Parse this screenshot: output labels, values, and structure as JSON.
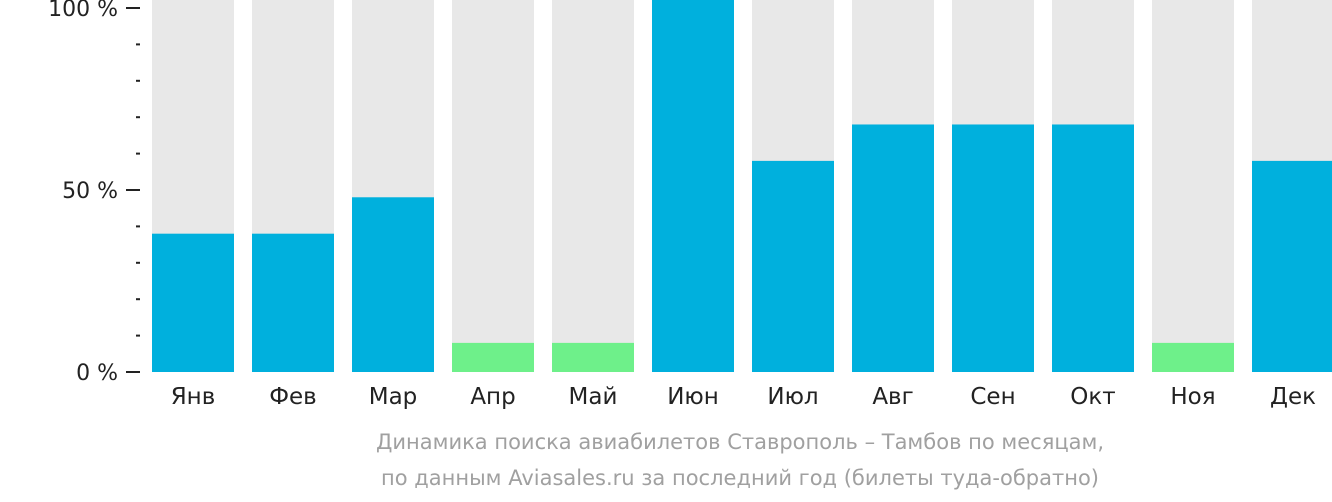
{
  "chart_data": {
    "type": "bar",
    "categories": [
      "Янв",
      "Фев",
      "Мар",
      "Апр",
      "Май",
      "Июн",
      "Июл",
      "Авг",
      "Сен",
      "Окт",
      "Ноя",
      "Дек"
    ],
    "values": [
      38,
      38,
      48,
      8,
      8,
      100,
      58,
      68,
      68,
      68,
      8,
      58
    ],
    "ylim": [
      0,
      100
    ],
    "y_ticks": [
      {
        "value": 0,
        "label": "0 %"
      },
      {
        "value": 50,
        "label": "50 %"
      },
      {
        "value": 100,
        "label": "100 %"
      }
    ],
    "y_minor_step": 10,
    "caption_line1": "Динамика поиска авиабилетов Ставрополь – Тамбов по месяцам,",
    "caption_line2": "по данным Aviasales.ru за последний год (билеты туда-обратно)",
    "colors": {
      "bar": "#00b0dd",
      "bar_low": "#6ef08a",
      "bar_background": "#e8e8e8",
      "axis": "#222222",
      "tick_label": "#222222",
      "caption": "#a0a0a0"
    }
  }
}
